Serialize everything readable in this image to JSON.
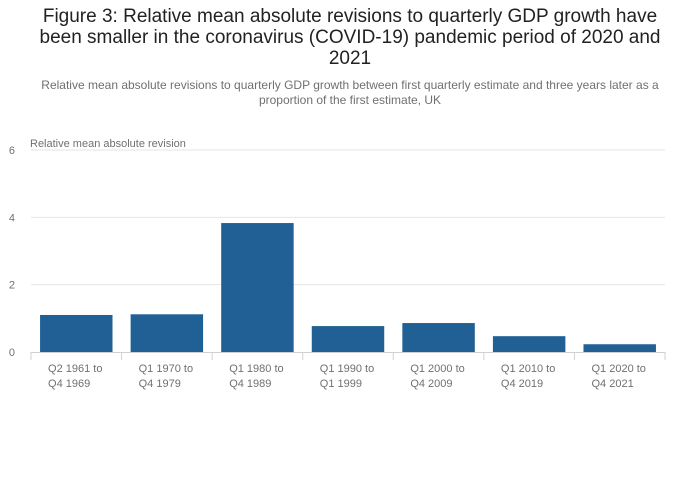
{
  "title": "Figure 3: Relative mean absolute revisions to quarterly GDP growth have been smaller in the coronavirus (COVID-19) pandemic period of 2020 and 2021",
  "subtitle": "Relative mean absolute revisions to quarterly GDP growth between first quarterly estimate and three years later as a proportion of the first estimate, UK",
  "colors": {
    "bar": "#206095",
    "grid": "#e6e6e6",
    "axis": "#d0d0d0"
  },
  "chart_data": {
    "type": "bar",
    "title": "Figure 3: Relative mean absolute revisions to quarterly GDP growth have been smaller in the coronavirus (COVID-19) pandemic period of 2020 and 2021",
    "xlabel": "",
    "ylabel": "Relative mean absolute revision",
    "ylim": [
      0,
      6
    ],
    "yticks": [
      "0",
      "2",
      "4",
      "6"
    ],
    "categories": [
      [
        "Q2 1961 to",
        "Q4 1969"
      ],
      [
        "Q1 1970 to",
        "Q4 1979"
      ],
      [
        "Q1 1980 to",
        "Q4 1989"
      ],
      [
        "Q1 1990 to",
        "Q1 1999"
      ],
      [
        "Q1 2000 to",
        "Q4 2009"
      ],
      [
        "Q1 2010 to",
        "Q4 2019"
      ],
      [
        "Q1 2020 to",
        "Q4 2021"
      ]
    ],
    "values": [
      1.1,
      1.12,
      3.83,
      0.77,
      0.86,
      0.47,
      0.23
    ],
    "grid": true
  }
}
